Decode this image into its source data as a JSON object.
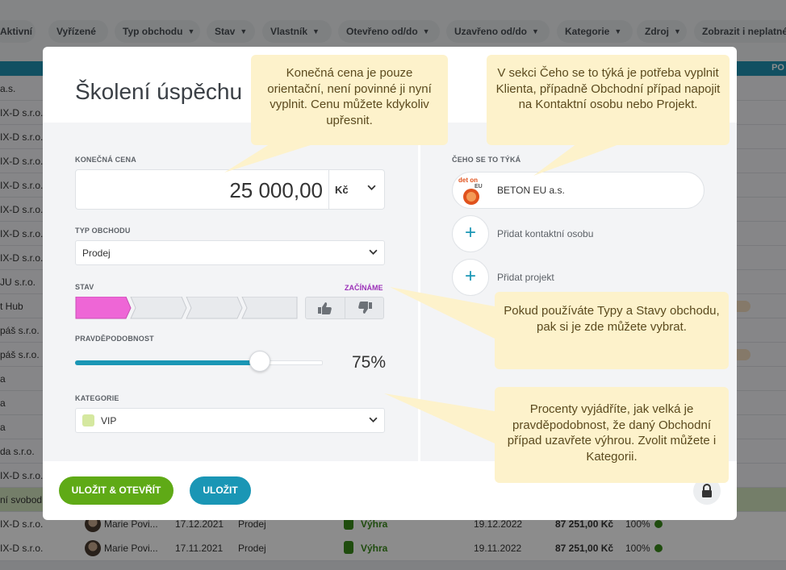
{
  "filters": [
    "Aktivní",
    "Vyřízené",
    "Typ obchodu",
    "Stav",
    "Vlastník",
    "Otevřeno od/do",
    "Uzavřeno od/do",
    "Kategorie",
    "Zdroj",
    "Zobrazit i neplatné"
  ],
  "table_header_right": "PO",
  "bg_rows": [
    {
      "name": "a.s.",
      "highlight": false
    },
    {
      "name": "IX-D s.r.o.",
      "highlight": false
    },
    {
      "name": "IX-D s.r.o.",
      "highlight": false
    },
    {
      "name": "IX-D s.r.o.",
      "highlight": false
    },
    {
      "name": "IX-D s.r.o.",
      "highlight": false
    },
    {
      "name": "IX-D s.r.o.",
      "highlight": false
    },
    {
      "name": "IX-D s.r.o.",
      "highlight": false
    },
    {
      "name": "IX-D s.r.o.",
      "highlight": false
    },
    {
      "name": "JU s.r.o.",
      "highlight": false
    },
    {
      "name": "t Hub",
      "highlight": false,
      "pill": true
    },
    {
      "name": "páš s.r.o.",
      "highlight": false
    },
    {
      "name": "páš s.r.o.",
      "highlight": false,
      "pill": true
    },
    {
      "name": "a",
      "highlight": false
    },
    {
      "name": "a",
      "highlight": false
    },
    {
      "name": "a",
      "highlight": false
    },
    {
      "name": "da s.r.o.",
      "highlight": false
    },
    {
      "name": "IX-D s.r.o.",
      "highlight": false
    },
    {
      "name": "ní svobod",
      "highlight": true
    }
  ],
  "bottom_rows": [
    {
      "company": "IX-D s.r.o.",
      "owner": "Marie Povi...",
      "opened": "17.12.2021",
      "type": "Prodej",
      "state": "Výhra",
      "closed": "19.12.2022",
      "amount": "87 251,00 Kč",
      "prob": "100%"
    },
    {
      "company": "IX-D s.r.o.",
      "owner": "Marie Povi...",
      "opened": "17.11.2021",
      "type": "Prodej",
      "state": "Výhra",
      "closed": "19.11.2022",
      "amount": "87 251,00 Kč",
      "prob": "100%"
    }
  ],
  "modal": {
    "title": "Školení úspěchu",
    "price_label": "KONEČNÁ CENA",
    "price_value": "25 000,00",
    "currency": "Kč",
    "type_label": "TYP OBCHODU",
    "type_value": "Prodej",
    "state_label": "STAV",
    "state_name": "ZAČÍNÁME",
    "stage_count": 4,
    "active_stage": 1,
    "stage_active_color": "#ee66d6",
    "prob_label": "PRAVDĚPODOBNOST",
    "probability": 75,
    "probability_text": "75%",
    "category_label": "KATEGORIE",
    "category_value": "VIP",
    "category_color": "#d5e8a0",
    "related_label": "ČEHO SE TO TÝKÁ",
    "client_name": "BETON EU a.s.",
    "client_logo_text": "det on",
    "client_logo_sub": "EU",
    "add_contact": "Přidat kontaktní osobu",
    "add_project": "Přidat projekt",
    "btn_save_open": "ULOŽIT & OTEVŘÍT",
    "btn_save": "ULOŽIT"
  },
  "tooltips": {
    "price": "Konečná cena je pouze orientační, není povinné ji nyní vyplnit. Cenu můžete kdykoliv upřesnit.",
    "related": "V sekci Čeho se to týká je potřeba vyplnit Klienta, případně Obchodní případ napojit na Kontaktní osobu nebo Projekt.",
    "types": "Pokud používáte Typy a Stavy obchodu, pak si je zde můžete vybrat.",
    "percent": "Procenty vyjádříte, jak velká je pravděpodobnost, že daný Obchodní případ uzavřete výhrou. Zvolit můžete i Kategorii."
  },
  "colors": {
    "accent": "#1a96b5",
    "save_open": "#5faa16",
    "tooltip_bg": "#fdf2cb",
    "state_label": "#9b30b8"
  }
}
